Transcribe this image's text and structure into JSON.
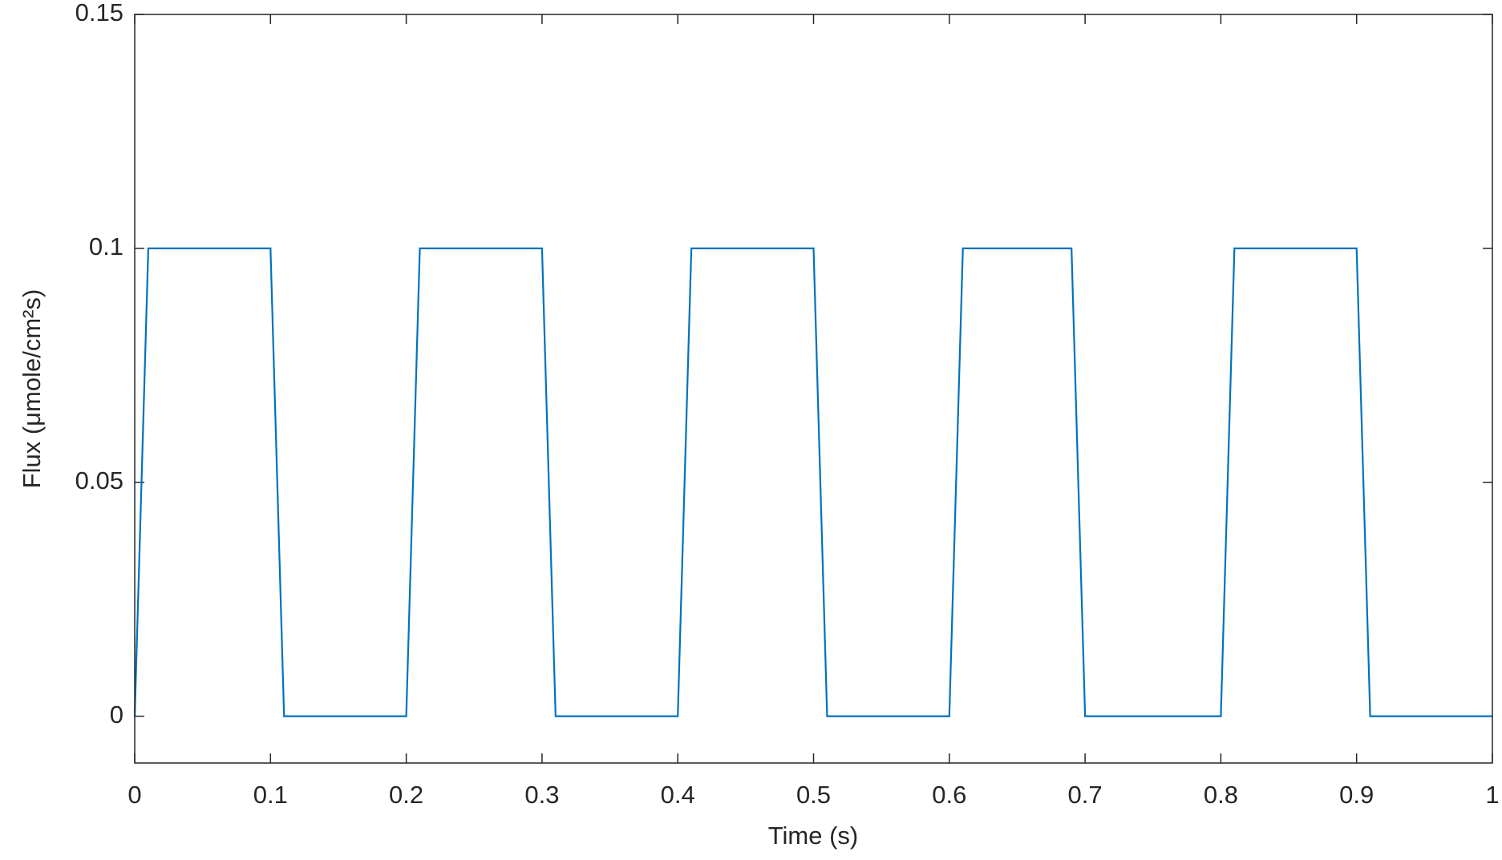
{
  "chart_data": {
    "type": "line",
    "x_label": "Time (s)",
    "y_label": "Flux (μmole/cm²s)",
    "x": [
      0,
      0.01,
      0.1,
      0.11,
      0.2,
      0.21,
      0.3,
      0.31,
      0.4,
      0.41,
      0.5,
      0.51,
      0.6,
      0.61,
      0.69,
      0.7,
      0.8,
      0.81,
      0.9,
      0.91,
      1
    ],
    "series": [
      {
        "color": "#0072bd",
        "values": [
          0,
          0.1,
          0.1,
          0,
          0,
          0.1,
          0.1,
          0,
          0,
          0.1,
          0.1,
          0,
          0,
          0.1,
          0.1,
          0,
          0,
          0.1,
          0.1,
          0,
          0
        ]
      }
    ],
    "xlim": [
      0,
      1
    ],
    "xticks": [
      0,
      0.1,
      0.2,
      0.3,
      0.4,
      0.5,
      0.6,
      0.7,
      0.8,
      0.9,
      1
    ],
    "ylim": [
      -0.01,
      0.15
    ],
    "yticks": [
      0,
      0.05,
      0.1,
      0.15
    ],
    "grid": false,
    "box": true
  }
}
